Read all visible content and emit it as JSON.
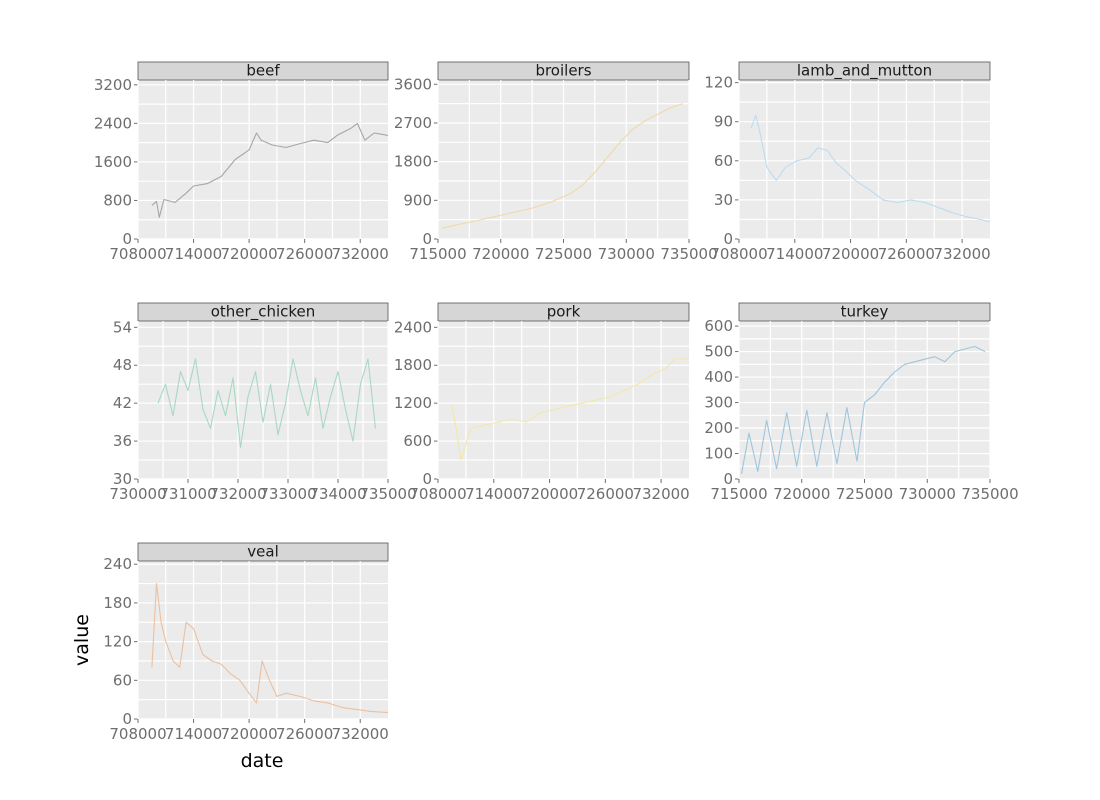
{
  "chart_data": {
    "type": "line",
    "layout": "facet-grid",
    "xlabel": "date",
    "ylabel": "value",
    "grid": true,
    "panels": [
      {
        "name": "beef",
        "color": "#a6a6a6",
        "xlim": [
          708000,
          735000
        ],
        "xticks": [
          708000,
          714000,
          720000,
          726000,
          732000
        ],
        "ylim": [
          0,
          3300
        ],
        "yticks": [
          0,
          800,
          1600,
          2400,
          3200
        ],
        "x": [
          709500,
          710000,
          710300,
          710800,
          712000,
          713200,
          714000,
          715500,
          717000,
          718500,
          720000,
          720800,
          721300,
          722500,
          724000,
          725500,
          727000,
          728500,
          729500,
          731000,
          731700,
          732500,
          733500,
          735000
        ],
        "values": [
          700,
          780,
          450,
          820,
          760,
          950,
          1100,
          1150,
          1300,
          1650,
          1850,
          2200,
          2050,
          1950,
          1900,
          1980,
          2050,
          2000,
          2150,
          2300,
          2400,
          2050,
          2200,
          2150
        ]
      },
      {
        "name": "broilers",
        "color": "#f0d9a8",
        "xlim": [
          715000,
          735000
        ],
        "xticks": [
          715000,
          720000,
          725000,
          730000,
          735000
        ],
        "ylim": [
          0,
          3700
        ],
        "yticks": [
          0,
          900,
          1800,
          2700,
          3600
        ],
        "x": [
          715300,
          716500,
          718000,
          719500,
          721000,
          722500,
          724000,
          725500,
          726500,
          727500,
          728500,
          729500,
          730500,
          731500,
          732500,
          733500,
          734500
        ],
        "values": [
          250,
          330,
          420,
          520,
          620,
          720,
          860,
          1050,
          1250,
          1550,
          1900,
          2250,
          2550,
          2750,
          2900,
          3050,
          3150
        ]
      },
      {
        "name": "lamb_and_mutton",
        "color": "#bcdcef",
        "xlim": [
          708000,
          735000
        ],
        "xticks": [
          708000,
          714000,
          720000,
          726000,
          732000
        ],
        "ylim": [
          0,
          122
        ],
        "yticks": [
          0,
          30,
          60,
          90,
          120
        ],
        "x": [
          709300,
          709800,
          710300,
          711000,
          712000,
          713000,
          714200,
          715500,
          716500,
          717500,
          718500,
          719500,
          720500,
          722000,
          723500,
          725000,
          726500,
          728000,
          729500,
          731000,
          732500,
          734000,
          735000
        ],
        "values": [
          85,
          95,
          80,
          55,
          45,
          55,
          60,
          62,
          70,
          68,
          58,
          52,
          45,
          38,
          30,
          28,
          30,
          28,
          24,
          20,
          17,
          15,
          13
        ]
      },
      {
        "name": "other_chicken",
        "color": "#a8d8c2",
        "xlim": [
          730000,
          735000
        ],
        "xticks": [
          730000,
          731000,
          732000,
          733000,
          734000,
          735000
        ],
        "ylim": [
          30,
          55
        ],
        "yticks": [
          30,
          36,
          42,
          48,
          54
        ],
        "x": [
          730400,
          730550,
          730700,
          730850,
          731000,
          731150,
          731300,
          731450,
          731600,
          731750,
          731900,
          732050,
          732200,
          732350,
          732500,
          732650,
          732800,
          732950,
          733100,
          733250,
          733400,
          733550,
          733700,
          733850,
          734000,
          734150,
          734300,
          734450,
          734600,
          734750
        ],
        "values": [
          42,
          45,
          40,
          47,
          44,
          49,
          41,
          38,
          44,
          40,
          46,
          35,
          43,
          47,
          39,
          45,
          37,
          42,
          49,
          44,
          40,
          46,
          38,
          43,
          47,
          41,
          36,
          45,
          49,
          38
        ]
      },
      {
        "name": "pork",
        "color": "#f2e8a8",
        "xlim": [
          708000,
          735000
        ],
        "xticks": [
          708000,
          714000,
          720000,
          726000,
          732000
        ],
        "ylim": [
          0,
          2500
        ],
        "yticks": [
          0,
          600,
          1200,
          1800,
          2400
        ],
        "x": [
          709500,
          710000,
          710500,
          711500,
          713000,
          714500,
          716000,
          717500,
          719000,
          720500,
          722000,
          723500,
          725000,
          726500,
          728000,
          729500,
          731000,
          732500,
          733500,
          735000
        ],
        "values": [
          1150,
          750,
          300,
          800,
          850,
          900,
          950,
          900,
          1050,
          1100,
          1150,
          1200,
          1250,
          1300,
          1400,
          1500,
          1650,
          1750,
          1900,
          1900
        ]
      },
      {
        "name": "turkey",
        "color": "#9fc5dc",
        "xlim": [
          715000,
          735000
        ],
        "xticks": [
          715000,
          720000,
          725000,
          730000,
          735000
        ],
        "ylim": [
          0,
          620
        ],
        "yticks": [
          0,
          100,
          200,
          300,
          400,
          500,
          600
        ],
        "x": [
          715200,
          715800,
          716500,
          717200,
          718000,
          718800,
          719600,
          720400,
          721200,
          722000,
          722800,
          723600,
          724400,
          725000,
          725800,
          726600,
          727400,
          728200,
          729000,
          729800,
          730600,
          731400,
          732200,
          733000,
          733800,
          734600
        ],
        "values": [
          20,
          180,
          30,
          230,
          40,
          260,
          50,
          270,
          50,
          260,
          60,
          280,
          70,
          300,
          330,
          380,
          420,
          450,
          460,
          470,
          480,
          460,
          500,
          510,
          520,
          500
        ]
      },
      {
        "name": "veal",
        "color": "#ebc0a0",
        "xlim": [
          708000,
          735000
        ],
        "xticks": [
          708000,
          714000,
          720000,
          726000,
          732000
        ],
        "ylim": [
          0,
          245
        ],
        "yticks": [
          0,
          60,
          120,
          180,
          240
        ],
        "x": [
          709500,
          710000,
          710500,
          711000,
          711800,
          712500,
          713200,
          714000,
          715000,
          716000,
          717000,
          718000,
          719000,
          720000,
          720800,
          721400,
          722200,
          723000,
          724000,
          725500,
          727000,
          728500,
          730000,
          731500,
          733000,
          735000
        ],
        "values": [
          80,
          210,
          150,
          120,
          90,
          80,
          150,
          140,
          100,
          90,
          85,
          70,
          60,
          40,
          25,
          90,
          60,
          35,
          40,
          35,
          28,
          25,
          18,
          15,
          12,
          10
        ]
      }
    ]
  }
}
